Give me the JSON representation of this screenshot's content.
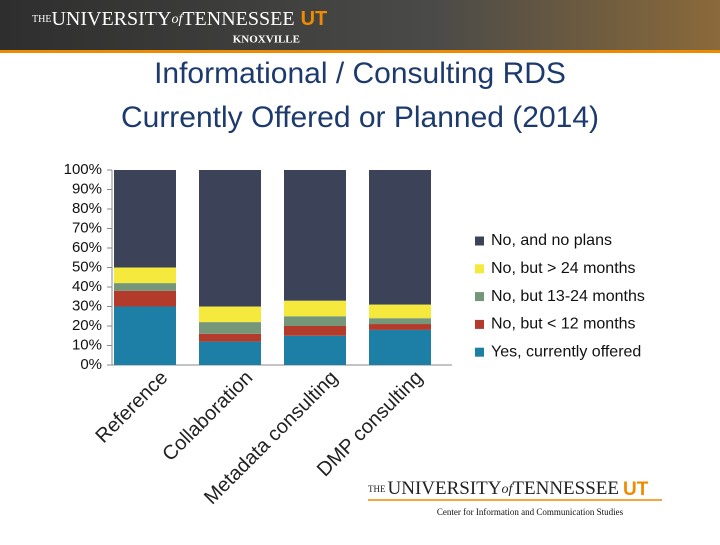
{
  "header": {
    "logo_prefix": "THE",
    "logo_name": "UNIVERSITY",
    "logo_of": "of",
    "logo_state": "TENNESSEE",
    "logo_mark": "UT",
    "campus": "KNOXVILLE"
  },
  "chart_data": {
    "type": "bar",
    "stacked": true,
    "title": "Informational / Consulting RDS Currently Offered or Planned (2014)",
    "categories": [
      "Reference",
      "Collaboration",
      "Metadata consulting",
      "DMP consulting"
    ],
    "series": [
      {
        "name": "Yes, currently offered",
        "color": "#1e7fa6",
        "values": [
          30,
          12,
          15,
          18
        ]
      },
      {
        "name": "No, but < 12 months",
        "color": "#b23b2c",
        "values": [
          8,
          4,
          5,
          3
        ]
      },
      {
        "name": "No, but 13-24 months",
        "color": "#76967a",
        "values": [
          4,
          6,
          5,
          3
        ]
      },
      {
        "name": "No, but > 24 months",
        "color": "#f4e93c",
        "values": [
          8,
          8,
          8,
          7
        ]
      },
      {
        "name": "No, and no plans",
        "color": "#3c4257",
        "values": [
          50,
          70,
          67,
          69
        ]
      }
    ],
    "ylim": [
      0,
      100
    ],
    "yticks": [
      {
        "value": 0,
        "label": "0%"
      },
      {
        "value": 10,
        "label": "10%"
      },
      {
        "value": 20,
        "label": "20%"
      },
      {
        "value": 30,
        "label": "30%"
      },
      {
        "value": 40,
        "label": "40%"
      },
      {
        "value": 50,
        "label": "50%"
      },
      {
        "value": 60,
        "label": "60%"
      },
      {
        "value": 70,
        "label": "70%"
      },
      {
        "value": 80,
        "label": "80%"
      },
      {
        "value": 90,
        "label": "90%"
      },
      {
        "value": 100,
        "label": "100%"
      }
    ],
    "grid": false,
    "legend": "right"
  },
  "footer": {
    "logo_prefix": "THE",
    "logo_name": "UNIVERSITY",
    "logo_of": "of",
    "logo_state": "TENNESSEE",
    "logo_mark": "UT",
    "caption": "Center for Information and Communication Studies"
  }
}
